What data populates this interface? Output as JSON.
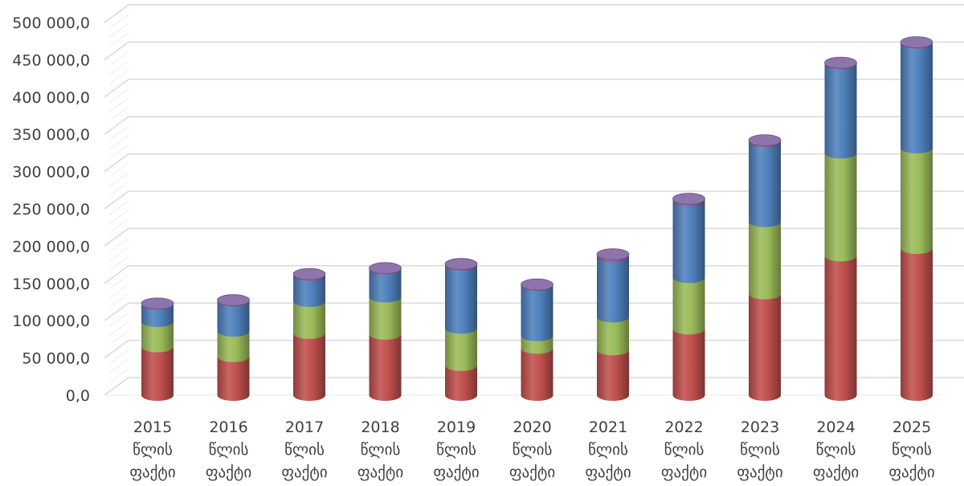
{
  "chart_data": {
    "type": "bar",
    "stacked": true,
    "style": "3d-cylinder",
    "title": "",
    "xlabel": "",
    "ylabel": "",
    "ylim": [
      0,
      500000
    ],
    "yticks": [
      "0,0",
      "50 000,0",
      "100 000,0",
      "150 000,0",
      "200 000,0",
      "250 000,0",
      "300 000,0",
      "350 000,0",
      "400 000,0",
      "450 000,0",
      "500 000,0"
    ],
    "grid": true,
    "legend": "none",
    "categories": [
      [
        "2015",
        "წლის",
        "ფაქტი"
      ],
      [
        "2016",
        "წლის",
        "ფაქტი"
      ],
      [
        "2017",
        "წლის",
        "ფაქტი"
      ],
      [
        "2018",
        "წლის",
        "ფაქტი"
      ],
      [
        "2019",
        "წლის",
        "ფაქტი"
      ],
      [
        "2020",
        "წლის",
        "ფაქტი"
      ],
      [
        "2021",
        "წლის",
        "ფაქტი"
      ],
      [
        "2022",
        "წლის",
        "ფაქტი"
      ],
      [
        "2023",
        "წლის",
        "ფაქტი"
      ],
      [
        "2024",
        "წლის",
        "ფაქტი"
      ],
      [
        "2025",
        "წლის",
        "ფაქტი"
      ]
    ],
    "series": [
      {
        "color": "#c0504d",
        "values": [
          65000,
          52000,
          83000,
          82000,
          40000,
          63000,
          61000,
          89000,
          136000,
          187000,
          197000
        ]
      },
      {
        "color": "#9bbb59",
        "values": [
          34000,
          34000,
          43000,
          50000,
          50000,
          17000,
          44000,
          69000,
          97000,
          138000,
          135000
        ]
      },
      {
        "color": "#4f81bd",
        "values": [
          23000,
          40000,
          34000,
          37000,
          84000,
          67000,
          80000,
          102000,
          106000,
          119000,
          140000
        ]
      },
      {
        "color": "#8064a2",
        "values": [
          1000,
          1500,
          2500,
          1500,
          2000,
          1500,
          4000,
          3500,
          3000,
          2000,
          1500
        ]
      }
    ]
  }
}
